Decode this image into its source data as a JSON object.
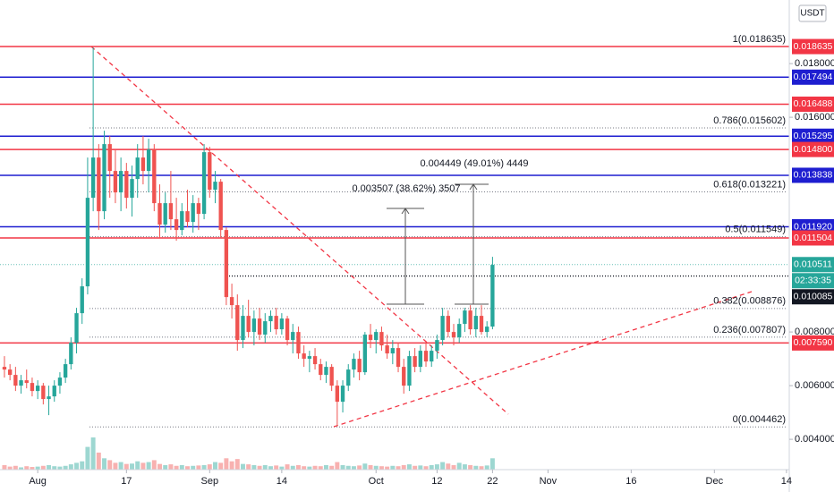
{
  "chart_data": {
    "type": "candlestick",
    "currency": "USDT",
    "xlim": [
      -0.8,
      141.5
    ],
    "ylim": [
      0.00287,
      0.02037
    ],
    "grid": false,
    "xticks": [
      {
        "value": 6,
        "label": "Aug"
      },
      {
        "value": 22,
        "label": "17"
      },
      {
        "value": 37,
        "label": "Sep"
      },
      {
        "value": 50,
        "label": "14"
      },
      {
        "value": 67,
        "label": "Oct"
      },
      {
        "value": 78,
        "label": "12"
      },
      {
        "value": 88,
        "label": "22"
      },
      {
        "value": 98,
        "label": "Nov"
      },
      {
        "value": 113,
        "label": "16"
      },
      {
        "value": 128,
        "label": "Dec"
      },
      {
        "value": 141,
        "label": "14"
      }
    ],
    "yticks": [
      {
        "value": 0.018,
        "label": "0.018000"
      },
      {
        "value": 0.016,
        "label": "0.016000"
      },
      {
        "value": 0.008,
        "label": "0.008000"
      },
      {
        "value": 0.006,
        "label": "0.006000"
      },
      {
        "value": 0.004,
        "label": "0.004000"
      }
    ],
    "up_color": "#26a69a",
    "down_color": "#ef5350",
    "ohlc": [
      [
        0.0067,
        0.0071,
        0.0063,
        0.0066
      ],
      [
        0.0066,
        0.0068,
        0.0062,
        0.0064
      ],
      [
        0.0064,
        0.0067,
        0.0058,
        0.006
      ],
      [
        0.006,
        0.0064,
        0.0057,
        0.0062
      ],
      [
        0.0062,
        0.0066,
        0.0059,
        0.0061
      ],
      [
        0.0061,
        0.0063,
        0.0056,
        0.0058
      ],
      [
        0.0058,
        0.0062,
        0.0055,
        0.006
      ],
      [
        0.006,
        0.0061,
        0.0053,
        0.0055
      ],
      [
        0.0055,
        0.006,
        0.0049,
        0.0056
      ],
      [
        0.0056,
        0.0062,
        0.0054,
        0.006
      ],
      [
        0.006,
        0.0065,
        0.0057,
        0.0063
      ],
      [
        0.0063,
        0.007,
        0.0061,
        0.0068
      ],
      [
        0.0068,
        0.0078,
        0.0066,
        0.0076
      ],
      [
        0.0076,
        0.0089,
        0.0072,
        0.0087
      ],
      [
        0.0087,
        0.01,
        0.0083,
        0.0097
      ],
      [
        0.0097,
        0.0145,
        0.0094,
        0.013
      ],
      [
        0.013,
        0.0186,
        0.0125,
        0.0145
      ],
      [
        0.0145,
        0.015,
        0.0118,
        0.0125
      ],
      [
        0.0125,
        0.0155,
        0.0122,
        0.015
      ],
      [
        0.015,
        0.0153,
        0.013,
        0.014
      ],
      [
        0.014,
        0.0148,
        0.0128,
        0.0132
      ],
      [
        0.0132,
        0.0145,
        0.0125,
        0.014
      ],
      [
        0.014,
        0.0143,
        0.0126,
        0.013
      ],
      [
        0.013,
        0.0142,
        0.0123,
        0.0137
      ],
      [
        0.0137,
        0.015,
        0.013,
        0.0145
      ],
      [
        0.0145,
        0.0153,
        0.0135,
        0.014
      ],
      [
        0.014,
        0.0152,
        0.0132,
        0.0148
      ],
      [
        0.0148,
        0.015,
        0.0125,
        0.0128
      ],
      [
        0.0128,
        0.0135,
        0.0115,
        0.012
      ],
      [
        0.012,
        0.0132,
        0.0117,
        0.0128
      ],
      [
        0.0128,
        0.014,
        0.0118,
        0.0122
      ],
      [
        0.0122,
        0.013,
        0.0114,
        0.0118
      ],
      [
        0.0118,
        0.0128,
        0.0116,
        0.0125
      ],
      [
        0.0125,
        0.0133,
        0.0119,
        0.0121
      ],
      [
        0.0121,
        0.0131,
        0.0117,
        0.0128
      ],
      [
        0.0128,
        0.013,
        0.0118,
        0.0124
      ],
      [
        0.0124,
        0.015,
        0.0122,
        0.0147
      ],
      [
        0.0147,
        0.0149,
        0.013,
        0.0133
      ],
      [
        0.0133,
        0.014,
        0.0128,
        0.0136
      ],
      [
        0.0136,
        0.0137,
        0.0115,
        0.0118
      ],
      [
        0.0118,
        0.0119,
        0.009,
        0.0093
      ],
      [
        0.0093,
        0.0098,
        0.0085,
        0.009
      ],
      [
        0.009,
        0.0094,
        0.0073,
        0.0077
      ],
      [
        0.0077,
        0.009,
        0.0074,
        0.0086
      ],
      [
        0.0086,
        0.0092,
        0.0078,
        0.008
      ],
      [
        0.008,
        0.0088,
        0.0075,
        0.0085
      ],
      [
        0.0085,
        0.0089,
        0.0077,
        0.0079
      ],
      [
        0.0079,
        0.0087,
        0.0076,
        0.0084
      ],
      [
        0.0084,
        0.0088,
        0.008,
        0.0086
      ],
      [
        0.0086,
        0.0089,
        0.0079,
        0.0081
      ],
      [
        0.0081,
        0.0087,
        0.0079,
        0.0085
      ],
      [
        0.0085,
        0.0086,
        0.0075,
        0.0077
      ],
      [
        0.0077,
        0.0083,
        0.0072,
        0.008
      ],
      [
        0.008,
        0.0082,
        0.007,
        0.0072
      ],
      [
        0.0072,
        0.0075,
        0.0067,
        0.007
      ],
      [
        0.007,
        0.0073,
        0.0065,
        0.0071
      ],
      [
        0.0071,
        0.0074,
        0.0066,
        0.0068
      ],
      [
        0.0068,
        0.007,
        0.0062,
        0.0064
      ],
      [
        0.0064,
        0.0069,
        0.0061,
        0.0067
      ],
      [
        0.0067,
        0.0068,
        0.0058,
        0.006
      ],
      [
        0.006,
        0.0062,
        0.0045,
        0.0054
      ],
      [
        0.0054,
        0.0062,
        0.005,
        0.006
      ],
      [
        0.006,
        0.0068,
        0.0058,
        0.0066
      ],
      [
        0.0066,
        0.0072,
        0.0063,
        0.007
      ],
      [
        0.007,
        0.0073,
        0.0062,
        0.0065
      ],
      [
        0.0065,
        0.008,
        0.0064,
        0.0079
      ],
      [
        0.0079,
        0.0083,
        0.0074,
        0.0077
      ],
      [
        0.0077,
        0.0081,
        0.0072,
        0.008
      ],
      [
        0.008,
        0.0082,
        0.0073,
        0.0075
      ],
      [
        0.0075,
        0.0079,
        0.007,
        0.0072
      ],
      [
        0.0072,
        0.0077,
        0.0068,
        0.0074
      ],
      [
        0.0074,
        0.0076,
        0.0065,
        0.0067
      ],
      [
        0.0067,
        0.007,
        0.0057,
        0.006
      ],
      [
        0.006,
        0.0073,
        0.0058,
        0.0071
      ],
      [
        0.0071,
        0.0074,
        0.0065,
        0.0067
      ],
      [
        0.0067,
        0.0075,
        0.0065,
        0.0073
      ],
      [
        0.0073,
        0.0076,
        0.0067,
        0.0069
      ],
      [
        0.0069,
        0.0075,
        0.0067,
        0.0073
      ],
      [
        0.0073,
        0.0079,
        0.007,
        0.0077
      ],
      [
        0.0077,
        0.0089,
        0.0075,
        0.0086
      ],
      [
        0.0086,
        0.0088,
        0.0078,
        0.008
      ],
      [
        0.008,
        0.0083,
        0.0075,
        0.0078
      ],
      [
        0.0078,
        0.0085,
        0.0076,
        0.0083
      ],
      [
        0.0083,
        0.0089,
        0.008,
        0.0088
      ],
      [
        0.0088,
        0.009,
        0.0079,
        0.0081
      ],
      [
        0.0081,
        0.0089,
        0.0078,
        0.0086
      ],
      [
        0.0086,
        0.009,
        0.0079,
        0.008
      ],
      [
        0.008,
        0.0084,
        0.0078,
        0.0082
      ],
      [
        0.0082,
        0.0108,
        0.0081,
        0.0105
      ]
    ],
    "volume": [
      12,
      8,
      10,
      6,
      9,
      7,
      8,
      10,
      12,
      9,
      8,
      10,
      14,
      18,
      22,
      60,
      85,
      45,
      30,
      25,
      18,
      20,
      15,
      16,
      22,
      18,
      20,
      25,
      15,
      12,
      14,
      10,
      12,
      9,
      10,
      11,
      12,
      14,
      20,
      18,
      30,
      22,
      28,
      15,
      14,
      12,
      10,
      12,
      9,
      11,
      8,
      14,
      10,
      12,
      9,
      8,
      10,
      9,
      12,
      10,
      20,
      12,
      10,
      9,
      11,
      16,
      12,
      10,
      9,
      8,
      10,
      9,
      12,
      14,
      10,
      11,
      9,
      12,
      14,
      20,
      16,
      12,
      18,
      14,
      12,
      10,
      9,
      11,
      30
    ],
    "levels": [
      {
        "value": 0.018635,
        "label": "0.018635",
        "color": "#f23645"
      },
      {
        "value": 0.017494,
        "label": "0.017494",
        "color": "#1e1ed0"
      },
      {
        "value": 0.016488,
        "label": "0.016488",
        "color": "#f23645"
      },
      {
        "value": 0.015295,
        "label": "0.015295",
        "color": "#1e1ed0"
      },
      {
        "value": 0.0148,
        "label": "0.014800",
        "color": "#f23645"
      },
      {
        "value": 0.013838,
        "label": "0.013838",
        "color": "#1e1ed0"
      },
      {
        "value": 0.01192,
        "label": "0.011920",
        "color": "#1e1ed0"
      },
      {
        "value": 0.011504,
        "label": "0.011504",
        "color": "#f23645"
      },
      {
        "value": 0.00759,
        "label": "0.007590",
        "color": "#f23645"
      }
    ],
    "fib": [
      {
        "value": 0.018635,
        "label": "1(0.018635)"
      },
      {
        "value": 0.015602,
        "label": "0.786(0.015602)"
      },
      {
        "value": 0.013221,
        "label": "0.618(0.013221)"
      },
      {
        "value": 0.011549,
        "label": "0.5(0.011549)"
      },
      {
        "value": 0.008876,
        "label": "0.382(0.008876)"
      },
      {
        "value": 0.007807,
        "label": "0.236(0.007807)"
      },
      {
        "value": 0.004462,
        "label": "0(0.004462)"
      }
    ],
    "price": {
      "value": 0.010511,
      "label": "0.010511",
      "color": "#26a69a",
      "countdown": "02:33:35"
    },
    "marker": {
      "value": 0.010085,
      "label": "0.010085",
      "color": "#131722"
    },
    "annotations": [
      "0.004449 (49.01%) 4449",
      "0.003507 (38.62%) 3507"
    ]
  }
}
